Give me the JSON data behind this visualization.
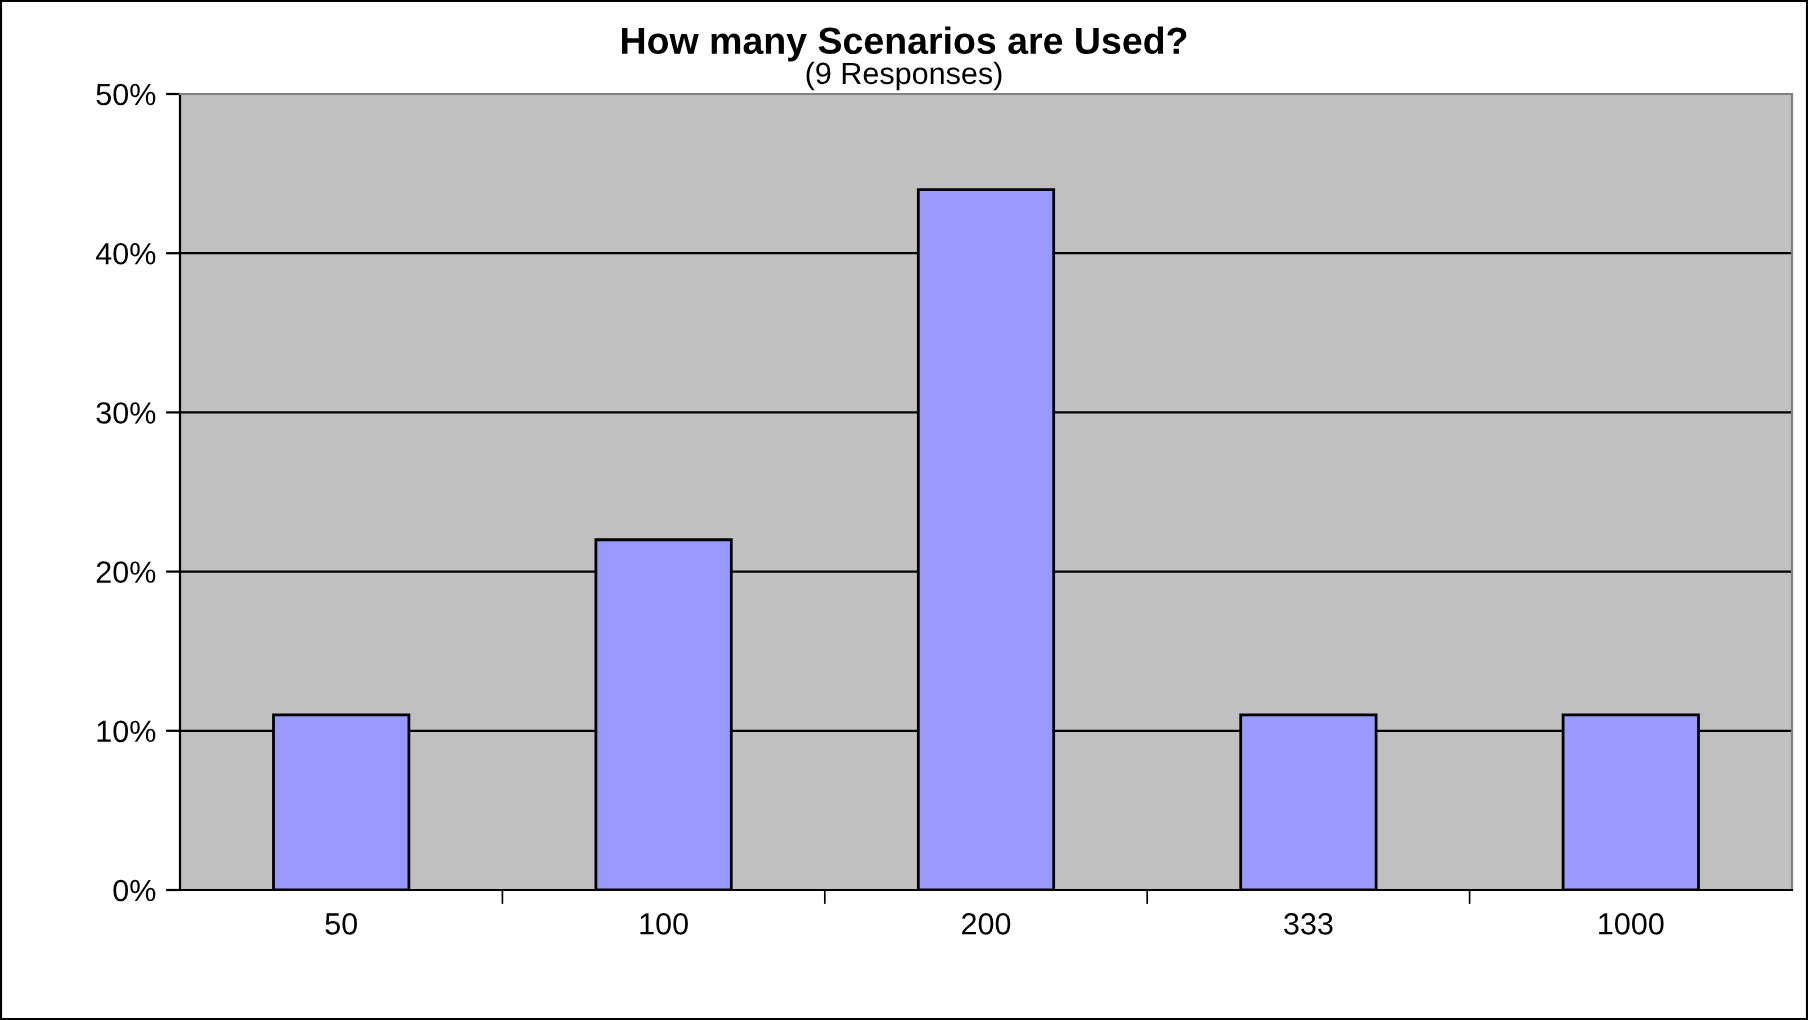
{
  "chart_data": {
    "type": "bar",
    "title": "How many Scenarios are Used?",
    "subtitle": "(9 Responses)",
    "categories": [
      "50",
      "100",
      "200",
      "333",
      "1000"
    ],
    "values": [
      11,
      22,
      44,
      11,
      11
    ],
    "color": "#9999ff",
    "ylim": [
      0,
      50
    ],
    "yticks": [
      {
        "value": 0,
        "label": "0%"
      },
      {
        "value": 10,
        "label": "10%"
      },
      {
        "value": 20,
        "label": "20%"
      },
      {
        "value": 30,
        "label": "30%"
      },
      {
        "value": 40,
        "label": "40%"
      },
      {
        "value": 50,
        "label": "50%"
      }
    ],
    "grid": "y",
    "legend": false
  }
}
